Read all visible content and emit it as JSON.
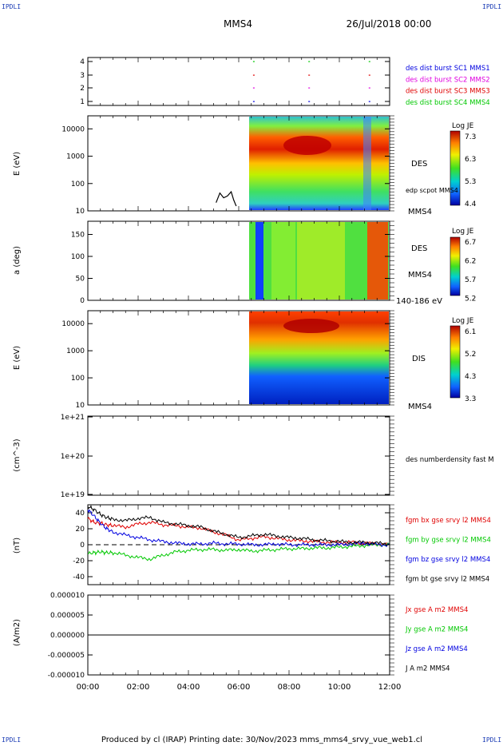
{
  "header": {
    "corner_tl": "IPDLI",
    "corner_tr": "IPDLI",
    "corner_bl": "IPDLI",
    "corner_br": "IPDLI",
    "spacecraft": "MMS4",
    "date": "26/Jul/2018 00:00"
  },
  "footer": {
    "text": "Produced by cl (IRAP)   Printing date: 30/Nov/2023   mms_mms4_srvy_vue_web1.cl"
  },
  "colors": {
    "red": "#e00000",
    "green": "#00c800",
    "blue": "#0000e0",
    "magenta": "#e000e0",
    "black": "#000000"
  },
  "chart_data": [
    {
      "type": "scatter",
      "name": "burst-availability",
      "x_range_hours": [
        0,
        12
      ],
      "y_ticks": [
        "4",
        "3",
        "2",
        "1"
      ],
      "legend": [
        {
          "label": "des dist burst SC1 MMS1",
          "color": "#0000e0"
        },
        {
          "label": "des dist burst SC2 MMS2",
          "color": "#e000e0"
        },
        {
          "label": "des dist burst SC3 MMS3",
          "color": "#e00000"
        },
        {
          "label": "des dist burst SC4 MMS4",
          "color": "#00c800"
        }
      ],
      "burst_times_hours": [
        6.6,
        8.8,
        11.2
      ]
    },
    {
      "type": "heatmap",
      "name": "des-energy",
      "ylabel": "E (eV)",
      "y_scale": "log",
      "ylim": [
        10,
        30000
      ],
      "y_ticks": [
        "10000",
        "1000",
        "100",
        "10"
      ],
      "data_start_hours": 6.5,
      "right_labels": [
        "DES",
        "edp scpot MMS4",
        "MMS4"
      ],
      "colorbar": {
        "title": "Log JE",
        "ticks": [
          "7.3",
          "6.3",
          "5.3",
          "4.4"
        ]
      },
      "scpot_series": {
        "x_hours": [
          5.1,
          5.25,
          5.4,
          5.55,
          5.7,
          5.8,
          5.9
        ],
        "y_ev": [
          20,
          45,
          30,
          35,
          50,
          25,
          15
        ]
      }
    },
    {
      "type": "heatmap",
      "name": "des-pitch-angle",
      "ylabel": "a (deg)",
      "ylim": [
        0,
        180
      ],
      "y_ticks": [
        "150",
        "100",
        "50",
        "0"
      ],
      "data_start_hours": 6.5,
      "right_labels": [
        "DES",
        "MMS4",
        "140-186 eV"
      ],
      "colorbar": {
        "title": "Log JE",
        "ticks": [
          "6.7",
          "6.2",
          "5.7",
          "5.2"
        ]
      }
    },
    {
      "type": "heatmap",
      "name": "dis-energy",
      "ylabel": "E (eV)",
      "y_scale": "log",
      "ylim": [
        10,
        30000
      ],
      "y_ticks": [
        "10000",
        "1000",
        "100",
        "10"
      ],
      "data_start_hours": 6.5,
      "right_labels": [
        "DIS",
        "MMS4"
      ],
      "colorbar": {
        "title": "Log JE",
        "ticks": [
          "6.1",
          "5.2",
          "4.3",
          "3.3"
        ]
      }
    },
    {
      "type": "line",
      "name": "number-density",
      "ylabel": "(cm^-3)",
      "y_scale": "log",
      "y_ticks": [
        "1e+21",
        "1e+20",
        "1e+19"
      ],
      "legend": [
        {
          "label": "des numberdensity fast M",
          "color": "#000000"
        }
      ]
    },
    {
      "type": "line",
      "name": "magnetic-field",
      "ylabel": "(nT)",
      "ylim": [
        -50,
        50
      ],
      "y_ticks": [
        "40",
        "20",
        "0",
        "-20",
        "-40"
      ],
      "x_hours": [
        0,
        0.25,
        0.5,
        0.75,
        1,
        1.5,
        2,
        2.5,
        3,
        3.5,
        4,
        4.5,
        5,
        5.5,
        6,
        6.5,
        7,
        7.5,
        8,
        8.5,
        9,
        9.5,
        10,
        10.5,
        11,
        11.5,
        12
      ],
      "series": [
        {
          "name": "fgm bx gse srvy l2 MMS4",
          "color": "#e00000",
          "values": [
            33,
            28,
            27,
            25,
            24,
            22,
            26,
            28,
            25,
            24,
            22,
            21,
            16,
            12,
            6,
            8,
            10,
            8,
            6,
            5,
            4,
            3,
            3,
            3,
            2,
            1,
            0
          ]
        },
        {
          "name": "fgm by gse srvy l2 MMS4",
          "color": "#00c800",
          "values": [
            -11,
            -10,
            -9,
            -10,
            -10,
            -13,
            -16,
            -18,
            -13,
            -9,
            -7,
            -6,
            -6,
            -7,
            -6,
            -8,
            -7,
            -6,
            -5,
            -5,
            -4,
            -4,
            -3,
            -2,
            -1,
            0,
            0
          ]
        },
        {
          "name": "fgm bz gse srvy l2 MMS4",
          "color": "#0000e0",
          "values": [
            44,
            36,
            27,
            20,
            16,
            12,
            9,
            6,
            4,
            2,
            1,
            1,
            2,
            1,
            1,
            0,
            0,
            1,
            0,
            0,
            0,
            0,
            0,
            1,
            2,
            0,
            0
          ]
        },
        {
          "name": "fgm bt gse srvy l2 MMS4",
          "color": "#000000",
          "values": [
            48,
            44,
            38,
            34,
            32,
            30,
            33,
            34,
            28,
            26,
            24,
            22,
            17,
            13,
            9,
            11,
            13,
            11,
            9,
            8,
            6,
            5,
            4,
            3,
            3,
            2,
            1
          ]
        }
      ]
    },
    {
      "type": "line",
      "name": "current-density",
      "ylabel": "(A/m2)",
      "ylim": [
        -1e-05,
        1e-05
      ],
      "y_ticks": [
        "0.000010",
        "0.000005",
        "0.000000",
        "-0.000005",
        "-0.000010"
      ],
      "legend": [
        {
          "label": "Jx gse A m2 MMS4",
          "color": "#e00000"
        },
        {
          "label": "Jy gse A m2 MMS4",
          "color": "#00c800"
        },
        {
          "label": "Jz gse A m2 MMS4",
          "color": "#0000e0"
        },
        {
          "label": "J A m2 MMS4",
          "color": "#000000"
        }
      ]
    }
  ],
  "x_axis": {
    "ticks": [
      "00:00",
      "02:00",
      "04:00",
      "06:00",
      "08:00",
      "10:00",
      "12:00"
    ],
    "hours": [
      0,
      2,
      4,
      6,
      8,
      10,
      12
    ]
  }
}
